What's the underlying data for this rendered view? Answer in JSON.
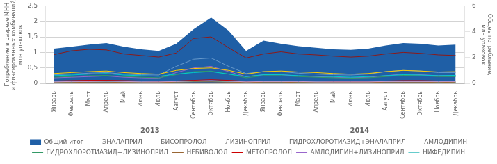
{
  "chart_data": {
    "type": "line",
    "categories": [
      "Январь",
      "Февраль",
      "Март",
      "Апрель",
      "Май",
      "Июнь",
      "Июль",
      "Август",
      "Сентябрь",
      "Октябрь",
      "Ноябрь",
      "Декабрь",
      "Январь",
      "Февраль",
      "Март",
      "Апрель",
      "Май",
      "Июнь",
      "Июль",
      "Август",
      "Сентябрь",
      "Октябрь",
      "Ноябрь",
      "Декабрь"
    ],
    "annotations": [
      "2013",
      "2014"
    ],
    "ylabel": "Потребление в разрезе МНН\nи фиксированных комбинаций,\nмлн упаковок",
    "y2label": "Общее потребление,\nмлн упаковок",
    "ylim": [
      0,
      2.5
    ],
    "yticks": [
      0,
      {
        "value": 0.5,
        "label": "0,5"
      },
      1,
      {
        "value": 1.5,
        "label": "1,5"
      },
      2,
      {
        "value": 2.5,
        "label": "2,5"
      }
    ],
    "y2lim": [
      0,
      6
    ],
    "y2ticks": [
      0,
      2,
      4,
      6
    ],
    "grid": true,
    "legend": "bottom",
    "series": [
      {
        "name": "Общий итог",
        "type": "area",
        "color": "#1f5fa6",
        "values": [
          1.12,
          1.18,
          1.25,
          1.3,
          1.18,
          1.1,
          1.05,
          1.28,
          1.75,
          2.12,
          1.7,
          1.05,
          1.38,
          1.28,
          1.2,
          1.15,
          1.1,
          1.08,
          1.12,
          1.22,
          1.3,
          1.28,
          1.22,
          1.25
        ]
      },
      {
        "name": "ЭНАЛАПРИЛ",
        "type": "line",
        "color": "#8b1a1a",
        "values": [
          0.93,
          1.05,
          1.1,
          1.08,
          0.95,
          0.9,
          0.85,
          0.98,
          1.45,
          1.5,
          1.15,
          0.82,
          0.95,
          1.02,
          0.95,
          0.92,
          0.88,
          0.85,
          0.88,
          0.95,
          1.0,
          0.97,
          0.92,
          0.9
        ]
      },
      {
        "name": "БИСОПРОЛОЛ",
        "type": "line",
        "color": "#ffcc00",
        "values": [
          0.32,
          0.35,
          0.38,
          0.4,
          0.35,
          0.32,
          0.3,
          0.42,
          0.48,
          0.5,
          0.42,
          0.3,
          0.38,
          0.4,
          0.37,
          0.35,
          0.32,
          0.3,
          0.32,
          0.38,
          0.42,
          0.4,
          0.37,
          0.38
        ]
      },
      {
        "name": "ЛИЗИНОПРИЛ",
        "type": "line",
        "color": "#00cccc",
        "values": [
          0.25,
          0.27,
          0.3,
          0.32,
          0.27,
          0.25,
          0.23,
          0.3,
          0.35,
          0.38,
          0.3,
          0.22,
          0.28,
          0.28,
          0.25,
          0.23,
          0.22,
          0.2,
          0.22,
          0.25,
          0.28,
          0.27,
          0.25,
          0.26
        ]
      },
      {
        "name": "ГИДРОХЛОРОТИАЗИД+ЭНАЛАПРИЛ",
        "type": "line",
        "color": "#cc99cc",
        "values": [
          0.05,
          0.06,
          0.06,
          0.07,
          0.06,
          0.05,
          0.05,
          0.06,
          0.08,
          0.09,
          0.07,
          0.05,
          0.06,
          0.06,
          0.06,
          0.05,
          0.05,
          0.05,
          0.05,
          0.06,
          0.06,
          0.06,
          0.06,
          0.06
        ]
      },
      {
        "name": "АМЛОДИПИН",
        "type": "line",
        "color": "#6699cc",
        "values": [
          0.28,
          0.3,
          0.33,
          0.35,
          0.3,
          0.28,
          0.27,
          0.55,
          0.78,
          0.82,
          0.55,
          0.32,
          0.38,
          0.38,
          0.33,
          0.3,
          0.28,
          0.27,
          0.3,
          0.38,
          0.42,
          0.4,
          0.35,
          0.35
        ]
      },
      {
        "name": "ГИДРОХЛОРОТИАЗИД+ЛИЗИНОПРИЛ",
        "type": "line",
        "color": "#339966",
        "values": [
          0.2,
          0.22,
          0.25,
          0.26,
          0.22,
          0.2,
          0.18,
          0.28,
          0.38,
          0.4,
          0.3,
          0.18,
          0.25,
          0.25,
          0.22,
          0.2,
          0.18,
          0.17,
          0.18,
          0.22,
          0.26,
          0.25,
          0.22,
          0.22
        ]
      },
      {
        "name": "НЕБИВОЛОЛ",
        "type": "line",
        "color": "#996633",
        "values": [
          0.03,
          0.03,
          0.04,
          0.04,
          0.03,
          0.03,
          0.03,
          0.04,
          0.05,
          0.05,
          0.04,
          0.03,
          0.04,
          0.04,
          0.03,
          0.03,
          0.03,
          0.03,
          0.03,
          0.04,
          0.04,
          0.04,
          0.03,
          0.04
        ]
      },
      {
        "name": "МЕТОПРОЛОЛ",
        "type": "line",
        "color": "#cc0000",
        "values": [
          0.08,
          0.09,
          0.1,
          0.1,
          0.09,
          0.08,
          0.07,
          0.08,
          0.1,
          0.12,
          0.1,
          0.07,
          0.08,
          0.08,
          0.08,
          0.08,
          0.07,
          0.07,
          0.07,
          0.08,
          0.09,
          0.09,
          0.08,
          0.08
        ]
      },
      {
        "name": "АМЛОДИПИН+ЛИЗИНОПРИЛ",
        "type": "line",
        "color": "#9966cc",
        "values": [
          0.18,
          0.2,
          0.22,
          0.24,
          0.2,
          0.18,
          0.17,
          0.35,
          0.5,
          0.55,
          0.38,
          0.22,
          0.28,
          0.28,
          0.24,
          0.22,
          0.2,
          0.18,
          0.2,
          0.25,
          0.3,
          0.28,
          0.25,
          0.25
        ]
      },
      {
        "name": "НИФЕДИПИН",
        "type": "line",
        "color": "#66cccc",
        "values": [
          0.04,
          0.04,
          0.05,
          0.05,
          0.04,
          0.04,
          0.04,
          0.05,
          0.06,
          0.07,
          0.05,
          0.04,
          0.05,
          0.05,
          0.04,
          0.04,
          0.04,
          0.04,
          0.04,
          0.05,
          0.05,
          0.05,
          0.04,
          0.04
        ]
      }
    ]
  }
}
